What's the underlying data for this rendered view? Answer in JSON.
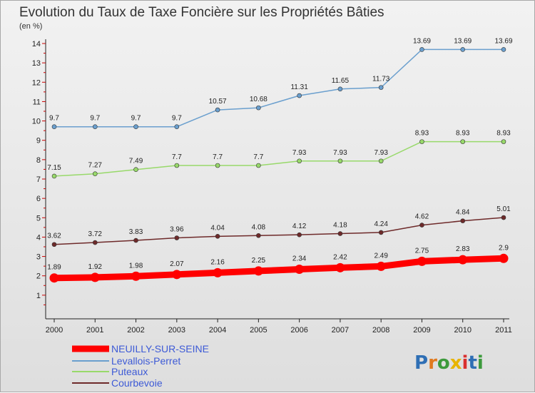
{
  "chart_data": {
    "type": "line",
    "title": "Evolution du Taux de Taxe Foncière sur les Propriétés Bâties",
    "subtitle": "(en %)",
    "categories": [
      "2000",
      "2001",
      "2002",
      "2003",
      "2004",
      "2005",
      "2006",
      "2007",
      "2008",
      "2009",
      "2010",
      "2011"
    ],
    "ylim": [
      0,
      14
    ],
    "yticks": [
      "1",
      "2",
      "3",
      "4",
      "5",
      "6",
      "7",
      "8",
      "9",
      "10",
      "11",
      "12",
      "13",
      "14"
    ],
    "grid": false,
    "legend": "bottom-left",
    "series": [
      {
        "name": "NEUILLY-SUR-SEINE",
        "color": "#ff0000",
        "values": [
          1.89,
          1.92,
          1.98,
          2.07,
          2.16,
          2.25,
          2.34,
          2.42,
          2.49,
          2.75,
          2.83,
          2.9
        ],
        "labels": [
          "1.89",
          "1.92",
          "1.98",
          "2.07",
          "2.16",
          "2.25",
          "2.34",
          "2.42",
          "2.49",
          "2.75",
          "2.83",
          "2.9"
        ]
      },
      {
        "name": "Levallois-Perret",
        "color": "#6a9fce",
        "values": [
          9.7,
          9.7,
          9.7,
          9.7,
          10.57,
          10.68,
          11.31,
          11.65,
          11.73,
          13.69,
          13.69,
          13.69
        ],
        "labels": [
          "9.7",
          "9.7",
          "9.7",
          "9.7",
          "10.57",
          "10.68",
          "11.31",
          "11.65",
          "11.73",
          "13.69",
          "13.69",
          "13.69"
        ]
      },
      {
        "name": "Puteaux",
        "color": "#98d96a",
        "values": [
          7.15,
          7.27,
          7.49,
          7.7,
          7.7,
          7.7,
          7.93,
          7.93,
          7.93,
          8.93,
          8.93,
          8.93
        ],
        "labels": [
          "7.15",
          "7.27",
          "7.49",
          "7.7",
          "7.7",
          "7.7",
          "7.93",
          "7.93",
          "7.93",
          "8.93",
          "8.93",
          "8.93"
        ]
      },
      {
        "name": "Courbevoie",
        "color": "#6e2a2a",
        "values": [
          3.62,
          3.72,
          3.83,
          3.96,
          4.04,
          4.08,
          4.12,
          4.18,
          4.24,
          4.62,
          4.84,
          5.01
        ],
        "labels": [
          "3.62",
          "3.72",
          "3.83",
          "3.96",
          "4.04",
          "4.08",
          "4.12",
          "4.18",
          "4.24",
          "4.62",
          "4.84",
          "5.01"
        ]
      }
    ]
  },
  "logo": {
    "text": "Proxiti"
  }
}
